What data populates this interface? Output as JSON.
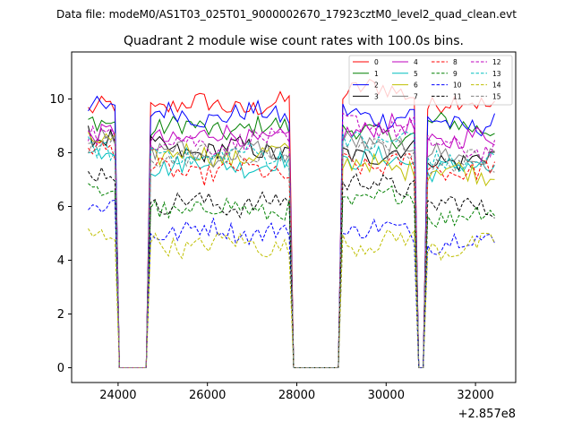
{
  "chart_data": {
    "type": "line",
    "suptitle": "Data file: modeM0/AS1T03_025T01_9000002670_17923cztM0_level2_quad_clean.evt",
    "title": "Quadrant 2 module wise count rates with 100.0s bins.",
    "xlabel": "",
    "ylabel": "",
    "x_offset_label": "+2.857e8",
    "xlim": [
      22960,
      32900
    ],
    "ylim": [
      -0.55,
      11.75
    ],
    "xticks": [
      24000,
      26000,
      28000,
      30000,
      32000
    ],
    "yticks": [
      0,
      2,
      4,
      6,
      8,
      10
    ],
    "grid": false,
    "legend_position": "top-right",
    "segments": [
      [
        23330,
        23930
      ],
      [
        24730,
        27830
      ],
      [
        29030,
        30630
      ],
      [
        30930,
        32430
      ]
    ],
    "gaps": [
      [
        24030,
        24630
      ],
      [
        27930,
        28930
      ],
      [
        30730,
        30830
      ]
    ],
    "series": [
      {
        "name": "0",
        "color": "#ff0000",
        "dash": "solid",
        "level": [
          9.6,
          9.75,
          10.3,
          9.8
        ]
      },
      {
        "name": "1",
        "color": "#008000",
        "dash": "solid",
        "level": [
          9.0,
          8.9,
          8.7,
          9.0
        ]
      },
      {
        "name": "2",
        "color": "#0000ff",
        "dash": "solid",
        "level": [
          9.7,
          9.4,
          9.4,
          9.1
        ]
      },
      {
        "name": "3",
        "color": "#000000",
        "dash": "solid",
        "level": [
          8.7,
          8.1,
          8.0,
          7.8
        ]
      },
      {
        "name": "4",
        "color": "#bf00bf",
        "dash": "solid",
        "level": [
          8.8,
          8.6,
          8.9,
          8.5
        ]
      },
      {
        "name": "5",
        "color": "#00bfbf",
        "dash": "solid",
        "level": [
          8.0,
          7.6,
          7.7,
          7.4
        ]
      },
      {
        "name": "6",
        "color": "#bfbf00",
        "dash": "solid",
        "level": [
          8.3,
          7.9,
          7.5,
          7.3
        ]
      },
      {
        "name": "7",
        "color": "#808080",
        "dash": "solid",
        "level": [
          8.5,
          8.0,
          8.3,
          7.9
        ]
      },
      {
        "name": "8",
        "color": "#ff0000",
        "dash": "dashed",
        "level": [
          8.3,
          7.3,
          7.6,
          7.4
        ]
      },
      {
        "name": "9",
        "color": "#008000",
        "dash": "dashed",
        "level": [
          6.7,
          5.9,
          6.3,
          5.7
        ]
      },
      {
        "name": "10",
        "color": "#0000ff",
        "dash": "dashed",
        "level": [
          6.0,
          5.1,
          5.1,
          4.7
        ]
      },
      {
        "name": "11",
        "color": "#000000",
        "dash": "dashed",
        "level": [
          7.1,
          6.1,
          6.8,
          6.0
        ]
      },
      {
        "name": "12",
        "color": "#bf00bf",
        "dash": "dashed",
        "level": [
          8.6,
          8.4,
          9.0,
          8.2
        ]
      },
      {
        "name": "13",
        "color": "#00bfbf",
        "dash": "dashed",
        "level": [
          8.2,
          7.9,
          8.5,
          7.7
        ]
      },
      {
        "name": "14",
        "color": "#bfbf00",
        "dash": "dashed",
        "level": [
          5.1,
          4.6,
          4.7,
          4.5
        ]
      },
      {
        "name": "15",
        "color": "#808080",
        "dash": "dashed",
        "level": [
          8.3,
          7.9,
          8.1,
          7.6
        ]
      }
    ]
  }
}
